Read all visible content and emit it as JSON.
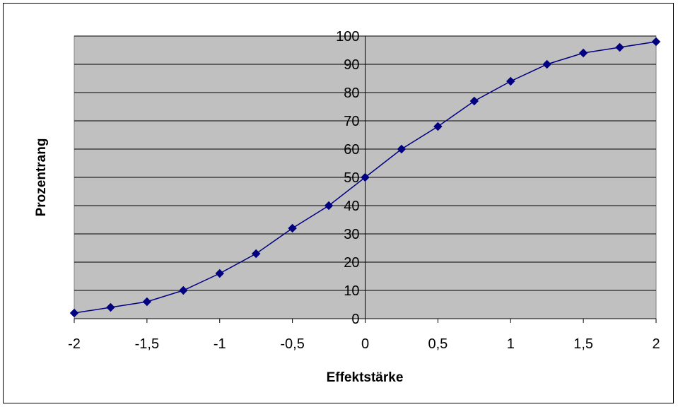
{
  "chart_data": {
    "type": "line",
    "title": "",
    "xlabel": "Effektstärke",
    "ylabel": "Prozentrang",
    "xlim": [
      -2,
      2
    ],
    "ylim": [
      0,
      100
    ],
    "x_ticks": [
      "-2",
      "-1,5",
      "-1",
      "-0,5",
      "0",
      "0,5",
      "1",
      "1,5",
      "2"
    ],
    "x_tick_values": [
      -2,
      -1.5,
      -1,
      -0.5,
      0,
      0.5,
      1,
      1.5,
      2
    ],
    "y_ticks": [
      "0",
      "10",
      "20",
      "30",
      "40",
      "50",
      "60",
      "70",
      "80",
      "90",
      "100"
    ],
    "y_tick_values": [
      0,
      10,
      20,
      30,
      40,
      50,
      60,
      70,
      80,
      90,
      100
    ],
    "grid": true,
    "legend": "none",
    "series": [
      {
        "x": [
          -2,
          -1.75,
          -1.5,
          -1.25,
          -1,
          -0.75,
          -0.5,
          -0.25,
          0,
          0.25,
          0.5,
          0.75,
          1,
          1.25,
          1.5,
          1.75,
          2
        ],
        "values": [
          2,
          4,
          6,
          10,
          16,
          23,
          32,
          40,
          50,
          60,
          68,
          77,
          84,
          90,
          94,
          96,
          98
        ],
        "color": "#000080",
        "marker": "diamond"
      }
    ],
    "plot_background": "#c0c0c0"
  }
}
